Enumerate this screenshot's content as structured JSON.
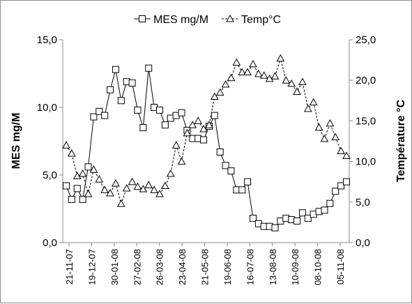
{
  "chart_data": {
    "type": "line",
    "title": "",
    "ylabel_left": "MES mg/M",
    "ylabel_right": "Température °C",
    "ylim_left": [
      0,
      15
    ],
    "ylim_right": [
      0,
      25
    ],
    "yticks_left": [
      "0,0",
      "5,0",
      "10,0",
      "15,0"
    ],
    "yticks_right": [
      "0,0",
      "5,0",
      "10,0",
      "15,0",
      "20,0",
      "25,0"
    ],
    "x_tick_labels": [
      "21-11-07",
      "19-12-07",
      "30-01-08",
      "27-02-08",
      "26-03-08",
      "23-04-08",
      "21-05-08",
      "19-06-08",
      "16-07-08",
      "13-08-08",
      "10-09-08",
      "08-10-08",
      "05-11-08"
    ],
    "grid": false,
    "legend_position": "top",
    "series": [
      {
        "name": "MES mg/M",
        "axis": "left",
        "marker": "square",
        "line": "solid",
        "color": "#000000",
        "values": [
          4.2,
          3.2,
          4.0,
          3.2,
          5.6,
          9.3,
          9.7,
          9.4,
          11.3,
          12.8,
          10.5,
          11.9,
          11.8,
          9.8,
          8.5,
          12.9,
          10.0,
          9.8,
          8.7,
          9.2,
          9.4,
          9.6,
          8.3,
          7.7,
          7.7,
          7.6,
          8.6,
          9.4,
          6.7,
          5.7,
          5.3,
          3.9,
          3.9,
          4.5,
          1.8,
          1.4,
          1.2,
          1.2,
          1.1,
          1.6,
          1.8,
          1.7,
          1.6,
          2.2,
          1.8,
          2.1,
          2.3,
          2.4,
          2.9,
          3.8,
          4.2,
          4.5
        ]
      },
      {
        "name": "Temp°C",
        "axis": "right",
        "marker": "triangle",
        "line": "dashed",
        "color": "#000000",
        "values": [
          12.0,
          11.0,
          8.2,
          8.5,
          6.0,
          9.0,
          7.8,
          6.5,
          6.1,
          7.3,
          4.8,
          6.7,
          7.5,
          6.9,
          6.6,
          7.1,
          6.5,
          6.0,
          7.0,
          8.5,
          12.0,
          10.0,
          13.5,
          14.5,
          15.0,
          14.0,
          14.5,
          18.0,
          18.5,
          19.5,
          20.3,
          22.2,
          21.0,
          21.0,
          22.0,
          20.8,
          20.6,
          20.2,
          20.5,
          22.7,
          20.0,
          19.6,
          18.6,
          19.8,
          16.5,
          17.3,
          14.2,
          12.8,
          14.7,
          13.0,
          11.3,
          10.7
        ]
      }
    ]
  }
}
